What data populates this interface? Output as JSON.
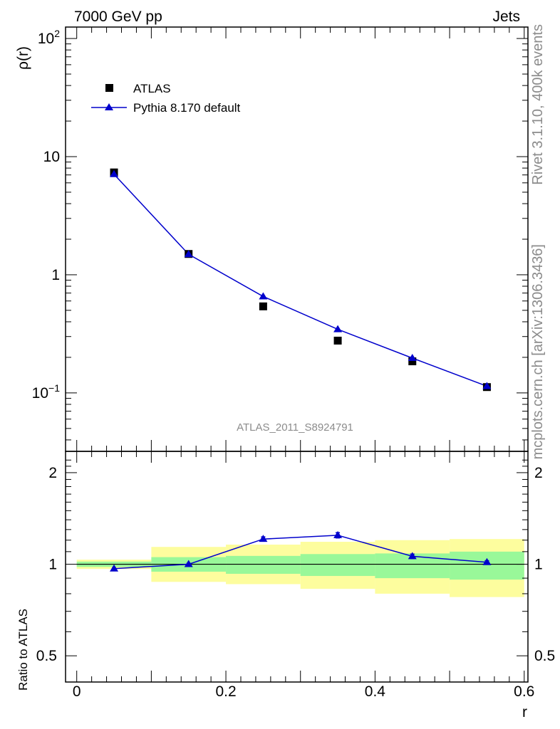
{
  "header": {
    "left": "7000 GeV pp",
    "right": "Jets"
  },
  "side_text": {
    "top": "Rivet 3.1.10,  400k events",
    "bottom": "mcplots.cern.ch [arXiv:1306.3436]"
  },
  "watermark": "ATLAS_2011_S8924791",
  "colors": {
    "mc": "#0000cc",
    "data": "#000000",
    "band_inner": "#99f899",
    "band_outer": "#fdfd9e"
  },
  "chart_data": [
    {
      "type": "scatter",
      "panel": "main",
      "ylabel": "ρ(r)",
      "yscale": "log",
      "ylim": [
        0.032,
        125
      ],
      "xlim": [
        -0.015,
        0.605
      ],
      "ytick_labels": [
        {
          "value": 100,
          "base": "10",
          "exp": "2"
        },
        {
          "value": 10,
          "text": "10"
        },
        {
          "value": 1,
          "text": "1"
        },
        {
          "value": 0.1,
          "base": "10",
          "exp": "−1"
        }
      ],
      "legend": {
        "position": "top-left",
        "data_label": "ATLAS",
        "mc_label": "Pythia 8.170 default"
      },
      "x": [
        0.05,
        0.15,
        0.25,
        0.35,
        0.45,
        0.55
      ],
      "series": [
        {
          "name": "ATLAS",
          "marker": "square",
          "values": [
            7.35,
            1.5,
            0.54,
            0.277,
            0.185,
            0.112
          ]
        },
        {
          "name": "Pythia 8.170 default",
          "marker": "triangle",
          "values": [
            7.1,
            1.49,
            0.655,
            0.345,
            0.197,
            0.114
          ]
        }
      ]
    },
    {
      "type": "line",
      "panel": "ratio",
      "ylabel": "Ratio to ATLAS",
      "xlabel": "r",
      "yscale": "log",
      "ylim": [
        0.41,
        2.35
      ],
      "xlim": [
        -0.015,
        0.605
      ],
      "xticks": [
        0,
        0.2,
        0.4,
        0.6
      ],
      "xtick_labels": [
        "0",
        "0.2",
        "0.4",
        "0.6"
      ],
      "yticks": [
        0.5,
        1,
        2
      ],
      "ytick_labels": [
        "0.5",
        "1",
        "2"
      ],
      "band_edges": [
        0.0,
        0.1,
        0.2,
        0.3,
        0.4,
        0.5,
        0.6
      ],
      "band_inner": [
        [
          0.98,
          1.02
        ],
        [
          0.945,
          1.055
        ],
        [
          0.93,
          1.065
        ],
        [
          0.915,
          1.08
        ],
        [
          0.9,
          1.085
        ],
        [
          0.89,
          1.1
        ]
      ],
      "band_outer": [
        [
          0.965,
          1.035
        ],
        [
          0.875,
          1.14
        ],
        [
          0.86,
          1.16
        ],
        [
          0.83,
          1.185
        ],
        [
          0.8,
          1.2
        ],
        [
          0.78,
          1.21
        ]
      ],
      "x": [
        0.05,
        0.15,
        0.25,
        0.35,
        0.45,
        0.55
      ],
      "values": [
        0.967,
        1.0,
        1.21,
        1.245,
        1.062,
        1.015
      ],
      "errors": [
        0.006,
        0.006,
        0.02,
        0.025,
        0.018,
        0.012
      ]
    }
  ]
}
